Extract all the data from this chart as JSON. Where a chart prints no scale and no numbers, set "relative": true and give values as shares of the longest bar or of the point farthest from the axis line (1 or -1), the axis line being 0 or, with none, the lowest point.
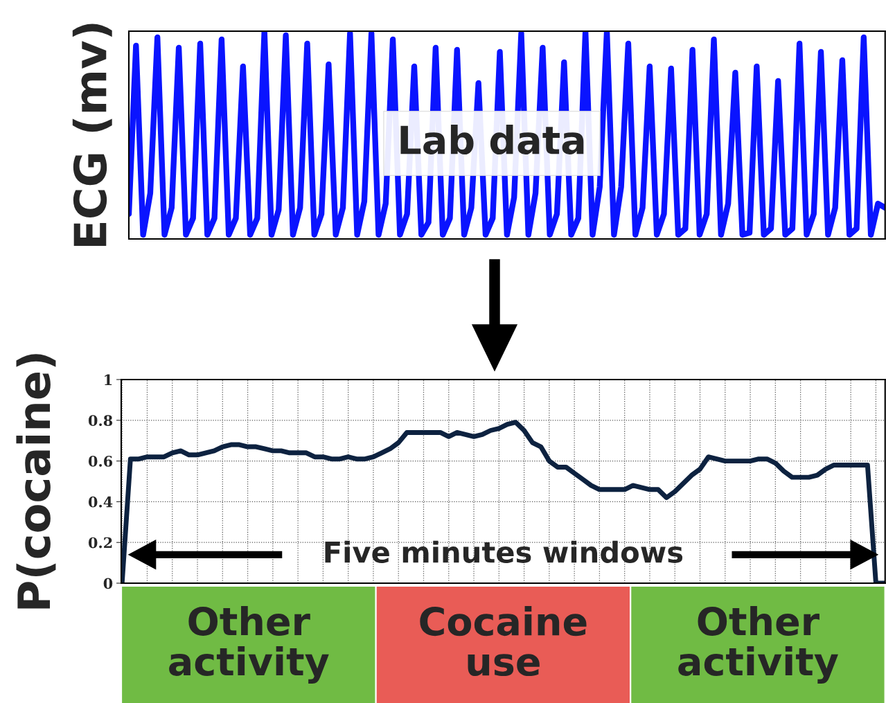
{
  "chart_data": [
    {
      "type": "line",
      "relative": true,
      "ylabel": "ECG (mv)",
      "annotations": [
        "Lab data"
      ],
      "tick_labels": false,
      "categories": [
        null,
        null,
        null,
        null,
        null,
        null,
        null,
        null,
        null,
        null,
        null,
        null,
        null,
        null,
        null,
        null,
        null,
        null,
        null,
        null,
        null,
        null,
        null,
        null,
        null,
        null,
        null,
        null,
        null,
        null,
        null,
        null,
        null,
        null,
        null,
        null,
        null,
        null,
        null,
        null,
        null,
        null,
        null,
        null,
        null,
        null,
        null,
        null,
        null,
        null,
        null,
        null,
        null,
        null,
        null,
        null,
        null,
        null,
        null,
        null,
        null,
        null,
        null,
        null,
        null,
        null,
        null,
        null,
        null,
        null,
        null,
        null,
        null,
        null,
        null,
        null,
        null,
        null,
        null,
        null,
        null,
        null,
        null,
        null,
        null,
        null,
        null,
        null,
        null,
        null,
        null,
        null,
        null,
        null,
        null,
        null,
        null,
        null,
        null,
        null,
        null,
        null,
        null,
        null,
        null,
        null,
        null
      ],
      "series": [
        {
          "color": "#0a14ff",
          "values": [
            0.12,
            0.93,
            0.02,
            0.22,
            0.97,
            0.02,
            0.15,
            0.92,
            0.02,
            0.1,
            0.94,
            0.02,
            0.1,
            0.96,
            0.02,
            0.1,
            0.83,
            0.02,
            0.1,
            1.0,
            0.02,
            0.14,
            0.98,
            0.02,
            0.15,
            0.94,
            0.02,
            0.12,
            0.84,
            0.02,
            0.15,
            0.99,
            0.02,
            0.18,
            0.99,
            0.02,
            0.17,
            0.96,
            0.02,
            0.12,
            0.83,
            0.02,
            0.08,
            0.92,
            0.02,
            0.1,
            0.91,
            0.02,
            0.15,
            0.75,
            0.02,
            0.1,
            0.9,
            0.02,
            0.2,
            0.99,
            0.02,
            0.22,
            0.92,
            0.02,
            0.12,
            0.85,
            0.02,
            0.1,
            1.0,
            0.02,
            0.25,
            1.0,
            0.02,
            0.25,
            0.94,
            0.02,
            0.15,
            0.83,
            0.02,
            0.12,
            0.82,
            0.02,
            0.05,
            0.91,
            0.02,
            0.12,
            0.96,
            0.02,
            0.17,
            0.8,
            0.02,
            0.03,
            0.83,
            0.02,
            0.05,
            0.76,
            0.02,
            0.05,
            0.94,
            0.02,
            0.12,
            0.9,
            0.02,
            0.15,
            0.86,
            0.02,
            0.05,
            0.97,
            0.02,
            0.17,
            0.15
          ]
        }
      ]
    },
    {
      "type": "line",
      "ylabel": "P(cocaine)",
      "ylim": [
        0,
        1
      ],
      "yticks": [
        0,
        0.2,
        0.4,
        0.6,
        0.8,
        1
      ],
      "grid": true,
      "tick_labels": "y",
      "line_style": "dotted",
      "annotations": [
        "Five minutes windows"
      ],
      "categories": [
        null,
        null,
        null,
        null,
        null,
        null,
        null,
        null,
        null,
        null,
        null,
        null,
        null,
        null,
        null,
        null,
        null,
        null,
        null,
        null,
        null,
        null,
        null,
        null,
        null,
        null,
        null,
        null,
        null,
        null,
        null,
        null,
        null,
        null,
        null,
        null,
        null,
        null,
        null,
        null,
        null,
        null,
        null,
        null,
        null,
        null,
        null,
        null,
        null,
        null,
        null,
        null,
        null,
        null,
        null,
        null,
        null,
        null,
        null,
        null,
        null,
        null,
        null,
        null,
        null,
        null,
        null,
        null,
        null,
        null,
        null,
        null,
        null,
        null,
        null,
        null,
        null,
        null,
        null,
        null,
        null,
        null,
        null,
        null,
        null,
        null,
        null,
        null,
        null,
        null,
        null,
        null
      ],
      "series": [
        {
          "color": "#0d2240",
          "line_style": "solid",
          "values": [
            0,
            0.61,
            0.61,
            0.62,
            0.62,
            0.62,
            0.64,
            0.65,
            0.63,
            0.63,
            0.64,
            0.65,
            0.67,
            0.68,
            0.68,
            0.67,
            0.67,
            0.66,
            0.65,
            0.65,
            0.64,
            0.64,
            0.64,
            0.62,
            0.62,
            0.61,
            0.61,
            0.62,
            0.61,
            0.61,
            0.62,
            0.64,
            0.66,
            0.69,
            0.74,
            0.74,
            0.74,
            0.74,
            0.74,
            0.72,
            0.74,
            0.73,
            0.72,
            0.73,
            0.75,
            0.76,
            0.78,
            0.79,
            0.75,
            0.69,
            0.67,
            0.6,
            0.57,
            0.57,
            0.54,
            0.51,
            0.48,
            0.46,
            0.46,
            0.46,
            0.46,
            0.48,
            0.47,
            0.46,
            0.46,
            0.42,
            0.45,
            0.49,
            0.53,
            0.56,
            0.62,
            0.61,
            0.6,
            0.6,
            0.6,
            0.6,
            0.61,
            0.61,
            0.59,
            0.55,
            0.52,
            0.52,
            0.52,
            0.53,
            0.56,
            0.58,
            0.58,
            0.58,
            0.58,
            0.58,
            0,
            0
          ]
        }
      ]
    },
    {
      "type": "other",
      "categories": [
        "Other\nactivity",
        "Cocaine\nuse",
        "Other\nactivity"
      ],
      "colors": [
        "#70bb44",
        "#e95c56",
        "#70bb44"
      ]
    }
  ]
}
